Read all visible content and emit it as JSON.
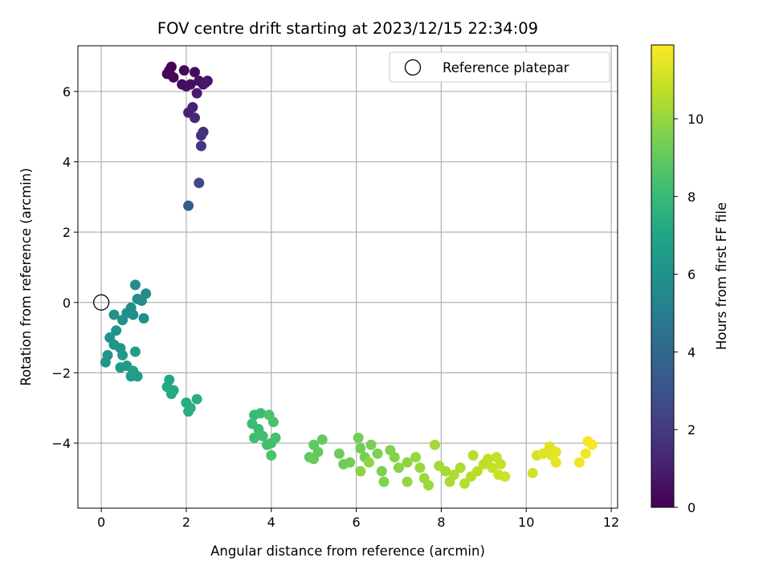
{
  "chart_data": {
    "type": "scatter",
    "title": "FOV centre drift starting at 2023/12/15 22:34:09",
    "xlabel": "Angular distance from reference (arcmin)",
    "ylabel": "Rotation from reference (arcmin)",
    "xlim": [
      -0.55,
      12.15
    ],
    "ylim": [
      -5.85,
      7.3
    ],
    "xticks": [
      0,
      2,
      4,
      6,
      8,
      10,
      12
    ],
    "yticks": [
      -4,
      -2,
      0,
      2,
      4,
      6
    ],
    "grid": true,
    "legend_position": "upper-right",
    "legend": [
      {
        "label": "Reference platepar",
        "marker": "open-circle"
      }
    ],
    "reference_point": {
      "x": 0,
      "y": 0
    },
    "colorbar": {
      "label": "Hours from first FF file",
      "colormap": "viridis",
      "range": [
        0,
        11.9
      ],
      "ticks": [
        0,
        2,
        4,
        6,
        8,
        10
      ]
    },
    "points": [
      {
        "x": 1.6,
        "y": 6.6,
        "t": 0.05
      },
      {
        "x": 1.65,
        "y": 6.7,
        "t": 0.1
      },
      {
        "x": 1.55,
        "y": 6.5,
        "t": 0.15
      },
      {
        "x": 1.7,
        "y": 6.4,
        "t": 0.2
      },
      {
        "x": 1.95,
        "y": 6.6,
        "t": 0.25
      },
      {
        "x": 2.2,
        "y": 6.55,
        "t": 0.3
      },
      {
        "x": 1.9,
        "y": 6.2,
        "t": 0.35
      },
      {
        "x": 2.0,
        "y": 6.15,
        "t": 0.4
      },
      {
        "x": 2.1,
        "y": 6.2,
        "t": 0.45
      },
      {
        "x": 2.3,
        "y": 6.3,
        "t": 0.55
      },
      {
        "x": 2.4,
        "y": 6.2,
        "t": 0.65
      },
      {
        "x": 2.5,
        "y": 6.3,
        "t": 0.75
      },
      {
        "x": 2.45,
        "y": 6.25,
        "t": 0.8
      },
      {
        "x": 2.25,
        "y": 5.95,
        "t": 0.9
      },
      {
        "x": 2.15,
        "y": 5.55,
        "t": 1.0
      },
      {
        "x": 2.05,
        "y": 5.4,
        "t": 1.1
      },
      {
        "x": 2.2,
        "y": 5.25,
        "t": 1.3
      },
      {
        "x": 2.4,
        "y": 4.85,
        "t": 1.5
      },
      {
        "x": 2.35,
        "y": 4.75,
        "t": 1.7
      },
      {
        "x": 2.35,
        "y": 4.45,
        "t": 1.9
      },
      {
        "x": 2.3,
        "y": 3.4,
        "t": 2.6
      },
      {
        "x": 2.05,
        "y": 2.75,
        "t": 3.5
      },
      {
        "x": 0.8,
        "y": 0.5,
        "t": 5.6
      },
      {
        "x": 1.05,
        "y": 0.25,
        "t": 5.65
      },
      {
        "x": 0.95,
        "y": 0.05,
        "t": 5.7
      },
      {
        "x": 0.85,
        "y": 0.1,
        "t": 5.7
      },
      {
        "x": 0.7,
        "y": -0.15,
        "t": 5.75
      },
      {
        "x": 0.6,
        "y": -0.3,
        "t": 5.8
      },
      {
        "x": 0.5,
        "y": -0.5,
        "t": 5.85
      },
      {
        "x": 0.75,
        "y": -0.35,
        "t": 5.9
      },
      {
        "x": 1.0,
        "y": -0.45,
        "t": 5.9
      },
      {
        "x": 0.3,
        "y": -0.35,
        "t": 5.95
      },
      {
        "x": 0.35,
        "y": -0.8,
        "t": 6.0
      },
      {
        "x": 0.2,
        "y": -1.0,
        "t": 6.05
      },
      {
        "x": 0.3,
        "y": -1.2,
        "t": 6.1
      },
      {
        "x": 0.15,
        "y": -1.5,
        "t": 6.15
      },
      {
        "x": 0.1,
        "y": -1.7,
        "t": 6.2
      },
      {
        "x": 0.45,
        "y": -1.3,
        "t": 6.25
      },
      {
        "x": 0.5,
        "y": -1.5,
        "t": 6.3
      },
      {
        "x": 0.45,
        "y": -1.85,
        "t": 6.35
      },
      {
        "x": 0.6,
        "y": -1.8,
        "t": 6.4
      },
      {
        "x": 0.7,
        "y": -2.1,
        "t": 6.45
      },
      {
        "x": 0.85,
        "y": -2.1,
        "t": 6.5
      },
      {
        "x": 0.75,
        "y": -1.95,
        "t": 6.55
      },
      {
        "x": 0.8,
        "y": -1.4,
        "t": 6.6
      },
      {
        "x": 1.6,
        "y": -2.2,
        "t": 7.1
      },
      {
        "x": 1.55,
        "y": -2.4,
        "t": 7.15
      },
      {
        "x": 1.7,
        "y": -2.5,
        "t": 7.2
      },
      {
        "x": 1.65,
        "y": -2.6,
        "t": 7.25
      },
      {
        "x": 2.0,
        "y": -2.85,
        "t": 7.3
      },
      {
        "x": 2.1,
        "y": -3.0,
        "t": 7.35
      },
      {
        "x": 2.05,
        "y": -3.1,
        "t": 7.4
      },
      {
        "x": 2.25,
        "y": -2.75,
        "t": 7.45
      },
      {
        "x": 3.6,
        "y": -3.2,
        "t": 8.0
      },
      {
        "x": 3.75,
        "y": -3.15,
        "t": 8.05
      },
      {
        "x": 3.55,
        "y": -3.45,
        "t": 8.1
      },
      {
        "x": 3.7,
        "y": -3.6,
        "t": 8.15
      },
      {
        "x": 3.6,
        "y": -3.85,
        "t": 8.2
      },
      {
        "x": 3.8,
        "y": -3.8,
        "t": 8.25
      },
      {
        "x": 3.9,
        "y": -4.05,
        "t": 8.3
      },
      {
        "x": 4.0,
        "y": -4.0,
        "t": 8.35
      },
      {
        "x": 4.1,
        "y": -3.85,
        "t": 8.4
      },
      {
        "x": 4.05,
        "y": -3.4,
        "t": 8.45
      },
      {
        "x": 3.95,
        "y": -3.2,
        "t": 8.5
      },
      {
        "x": 4.0,
        "y": -4.35,
        "t": 8.55
      },
      {
        "x": 4.9,
        "y": -4.4,
        "t": 8.9
      },
      {
        "x": 5.0,
        "y": -4.05,
        "t": 8.95
      },
      {
        "x": 5.1,
        "y": -4.25,
        "t": 9.0
      },
      {
        "x": 5.2,
        "y": -3.9,
        "t": 9.05
      },
      {
        "x": 5.0,
        "y": -4.45,
        "t": 9.1
      },
      {
        "x": 5.6,
        "y": -4.3,
        "t": 9.2
      },
      {
        "x": 5.7,
        "y": -4.6,
        "t": 9.25
      },
      {
        "x": 5.85,
        "y": -4.55,
        "t": 9.3
      },
      {
        "x": 6.05,
        "y": -3.85,
        "t": 9.35
      },
      {
        "x": 6.1,
        "y": -4.15,
        "t": 9.35
      },
      {
        "x": 6.2,
        "y": -4.4,
        "t": 9.4
      },
      {
        "x": 6.35,
        "y": -4.05,
        "t": 9.45
      },
      {
        "x": 6.5,
        "y": -4.3,
        "t": 9.5
      },
      {
        "x": 6.6,
        "y": -4.8,
        "t": 9.55
      },
      {
        "x": 6.65,
        "y": -5.1,
        "t": 9.6
      },
      {
        "x": 6.8,
        "y": -4.2,
        "t": 9.65
      },
      {
        "x": 6.9,
        "y": -4.4,
        "t": 9.7
      },
      {
        "x": 7.0,
        "y": -4.7,
        "t": 9.75
      },
      {
        "x": 6.1,
        "y": -4.8,
        "t": 9.8
      },
      {
        "x": 6.3,
        "y": -4.55,
        "t": 9.85
      },
      {
        "x": 7.2,
        "y": -4.55,
        "t": 9.9
      },
      {
        "x": 7.2,
        "y": -5.1,
        "t": 9.95
      },
      {
        "x": 7.4,
        "y": -4.4,
        "t": 10.0
      },
      {
        "x": 7.5,
        "y": -4.7,
        "t": 10.05
      },
      {
        "x": 7.6,
        "y": -5.0,
        "t": 10.1
      },
      {
        "x": 7.7,
        "y": -5.2,
        "t": 10.15
      },
      {
        "x": 7.85,
        "y": -4.05,
        "t": 10.2
      },
      {
        "x": 7.95,
        "y": -4.65,
        "t": 10.25
      },
      {
        "x": 8.1,
        "y": -4.8,
        "t": 10.3
      },
      {
        "x": 8.2,
        "y": -5.1,
        "t": 10.35
      },
      {
        "x": 8.3,
        "y": -4.9,
        "t": 10.4
      },
      {
        "x": 8.45,
        "y": -4.7,
        "t": 10.45
      },
      {
        "x": 8.55,
        "y": -5.15,
        "t": 10.5
      },
      {
        "x": 8.7,
        "y": -4.95,
        "t": 10.55
      },
      {
        "x": 8.75,
        "y": -4.35,
        "t": 10.6
      },
      {
        "x": 8.85,
        "y": -4.8,
        "t": 10.65
      },
      {
        "x": 9.0,
        "y": -4.6,
        "t": 10.7
      },
      {
        "x": 9.1,
        "y": -4.45,
        "t": 10.75
      },
      {
        "x": 9.2,
        "y": -4.7,
        "t": 10.8
      },
      {
        "x": 9.3,
        "y": -4.4,
        "t": 10.85
      },
      {
        "x": 9.4,
        "y": -4.6,
        "t": 10.9
      },
      {
        "x": 9.35,
        "y": -4.9,
        "t": 10.95
      },
      {
        "x": 9.5,
        "y": -4.95,
        "t": 11.0
      },
      {
        "x": 10.15,
        "y": -4.85,
        "t": 11.1
      },
      {
        "x": 10.25,
        "y": -4.35,
        "t": 11.2
      },
      {
        "x": 10.4,
        "y": -4.3,
        "t": 11.3
      },
      {
        "x": 10.55,
        "y": -4.1,
        "t": 11.35
      },
      {
        "x": 10.6,
        "y": -4.35,
        "t": 11.4
      },
      {
        "x": 10.7,
        "y": -4.25,
        "t": 11.45
      },
      {
        "x": 10.7,
        "y": -4.55,
        "t": 11.5
      },
      {
        "x": 11.25,
        "y": -4.55,
        "t": 11.6
      },
      {
        "x": 11.4,
        "y": -4.3,
        "t": 11.7
      },
      {
        "x": 11.45,
        "y": -3.95,
        "t": 11.8
      },
      {
        "x": 11.55,
        "y": -4.05,
        "t": 11.85
      }
    ]
  }
}
